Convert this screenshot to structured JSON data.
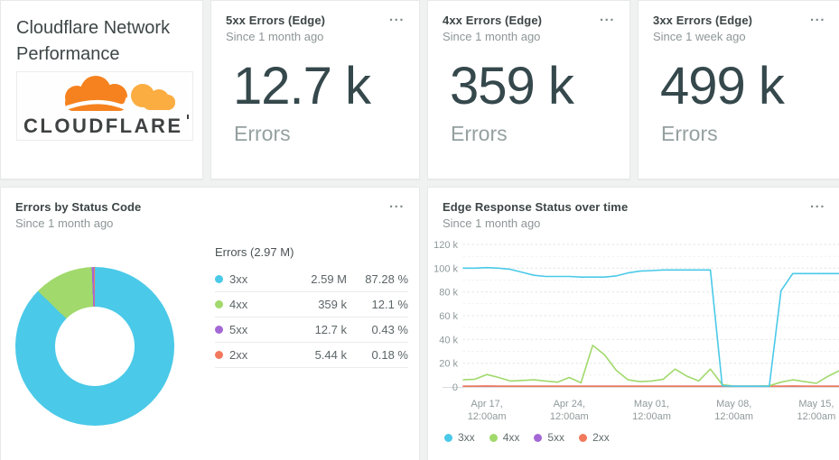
{
  "page": {
    "background": "#f0f1f1"
  },
  "icons": {
    "menu": "...",
    "logo": "cloudflare-logo"
  },
  "header_card": {
    "title": "Cloudflare Network Performance",
    "logo_text": "CLOUDFLARE"
  },
  "stat_cards": [
    {
      "title": "5xx Errors (Edge)",
      "subtitle": "Since 1 month ago",
      "value": "12.7 k",
      "unit": "Errors"
    },
    {
      "title": "4xx Errors (Edge)",
      "subtitle": "Since 1 month ago",
      "value": "359 k",
      "unit": "Errors"
    },
    {
      "title": "3xx Errors (Edge)",
      "subtitle": "Since 1 week ago",
      "value": "499 k",
      "unit": "Errors"
    }
  ],
  "donut_card": {
    "title": "Errors by Status Code",
    "subtitle": "Since 1 month ago",
    "legend_header": "Errors (2.97 M)"
  },
  "timeseries_card": {
    "title": "Edge Response Status over time",
    "subtitle": "Since 1 month ago"
  },
  "colors": {
    "blue": "#4ac9e8",
    "green": "#a1d96c",
    "purple": "#a468d5",
    "orange": "#f2795c",
    "title_text": "#3d4546",
    "muted_text": "#8d9697",
    "big_number": "#35484c",
    "logo_orange": "#f6821f",
    "logo_light_orange": "#fbad41"
  },
  "chart_data": [
    {
      "type": "pie",
      "donut": true,
      "title": "Errors by Status Code",
      "legend_title": "Errors (2.97 M)",
      "total_label": "2.97 M",
      "slices": [
        {
          "label": "3xx",
          "value": 2590000,
          "value_label": "2.59 M",
          "pct": 87.28,
          "pct_label": "87.28 %",
          "color": "#4ac9e8"
        },
        {
          "label": "4xx",
          "value": 359000,
          "value_label": "359 k",
          "pct": 12.1,
          "pct_label": "12.1 %",
          "color": "#a1d96c"
        },
        {
          "label": "5xx",
          "value": 12700,
          "value_label": "12.7 k",
          "pct": 0.43,
          "pct_label": "0.43 %",
          "color": "#a468d5"
        },
        {
          "label": "2xx",
          "value": 5440,
          "value_label": "5.44 k",
          "pct": 0.18,
          "pct_label": "0.18 %",
          "color": "#f2795c"
        }
      ]
    },
    {
      "type": "line",
      "title": "Edge Response Status over time",
      "y_unit": "k",
      "ylim_k": [
        0,
        130
      ],
      "grid": true,
      "legend_position": "bottom",
      "y_ticks": [
        {
          "v": 120,
          "label": "120 k"
        },
        {
          "v": 100,
          "label": "100 k"
        },
        {
          "v": 80,
          "label": "80 k"
        },
        {
          "v": 60,
          "label": "60 k"
        },
        {
          "v": 40,
          "label": "40 k"
        },
        {
          "v": 20,
          "label": "20 k"
        },
        {
          "v": 0,
          "label": "0"
        }
      ],
      "x_ticks": [
        {
          "pos": 2,
          "line1": "Apr 17,",
          "line2": "12:00am"
        },
        {
          "pos": 9,
          "line1": "Apr 24,",
          "line2": "12:00am"
        },
        {
          "pos": 16,
          "line1": "May 01,",
          "line2": "12:00am"
        },
        {
          "pos": 23,
          "line1": "May 08,",
          "line2": "12:00am"
        },
        {
          "pos": 30,
          "line1": "May 15,",
          "line2": "12:00am"
        }
      ],
      "series": [
        {
          "name": "3xx",
          "color": "#4ac9e8",
          "unit": "thousands",
          "values_k": [
            100,
            100,
            100.5,
            100,
            99,
            96.5,
            94,
            93,
            93,
            93,
            92.5,
            92.5,
            92.5,
            93.5,
            96,
            97.5,
            98,
            98.5,
            98.5,
            98.5,
            98.5,
            98.5,
            1,
            0.5,
            0.5,
            0.5,
            0.5,
            81,
            95.5,
            95.5,
            95.5,
            95.5,
            95.5
          ]
        },
        {
          "name": "4xx",
          "color": "#a1d96c",
          "unit": "thousands",
          "values_k": [
            6,
            6.5,
            10.5,
            8,
            5,
            5.5,
            6,
            5,
            4,
            8,
            3.5,
            35,
            27,
            14,
            6,
            4.5,
            5,
            6.5,
            15,
            9,
            5,
            15,
            2,
            0.5,
            0.3,
            0.5,
            1,
            4,
            6,
            4.5,
            3,
            9,
            14
          ]
        },
        {
          "name": "5xx",
          "color": "#a468d5",
          "unit": "thousands",
          "values_k": [
            0.2,
            0.2,
            0.2,
            0.2,
            0.2,
            0.2,
            0.2,
            0.2,
            0.2,
            0.2,
            0.2,
            0.2,
            0.2,
            0.2,
            0.2,
            0.2,
            0.2,
            0.2,
            0.2,
            0.2,
            0.2,
            0.2,
            0.2,
            0.2,
            0.2,
            0.2,
            0.2,
            0.2,
            0.2,
            0.2,
            0.2,
            0.2,
            0.2
          ]
        },
        {
          "name": "2xx",
          "color": "#f2795c",
          "unit": "thousands",
          "values_k": [
            0.4,
            0.4,
            0.8,
            0.6,
            0.4,
            0.4,
            0.4,
            0.4,
            0.4,
            0.5,
            0.4,
            0.5,
            0.5,
            0.4,
            0.4,
            0.4,
            0.4,
            0.4,
            0.4,
            0.4,
            0.4,
            0.5,
            0.4,
            0.3,
            0.3,
            0.3,
            0.3,
            0.4,
            0.8,
            0.6,
            0.4,
            0.4,
            0.4
          ]
        }
      ],
      "legend": [
        "3xx",
        "4xx",
        "5xx",
        "2xx"
      ]
    }
  ]
}
